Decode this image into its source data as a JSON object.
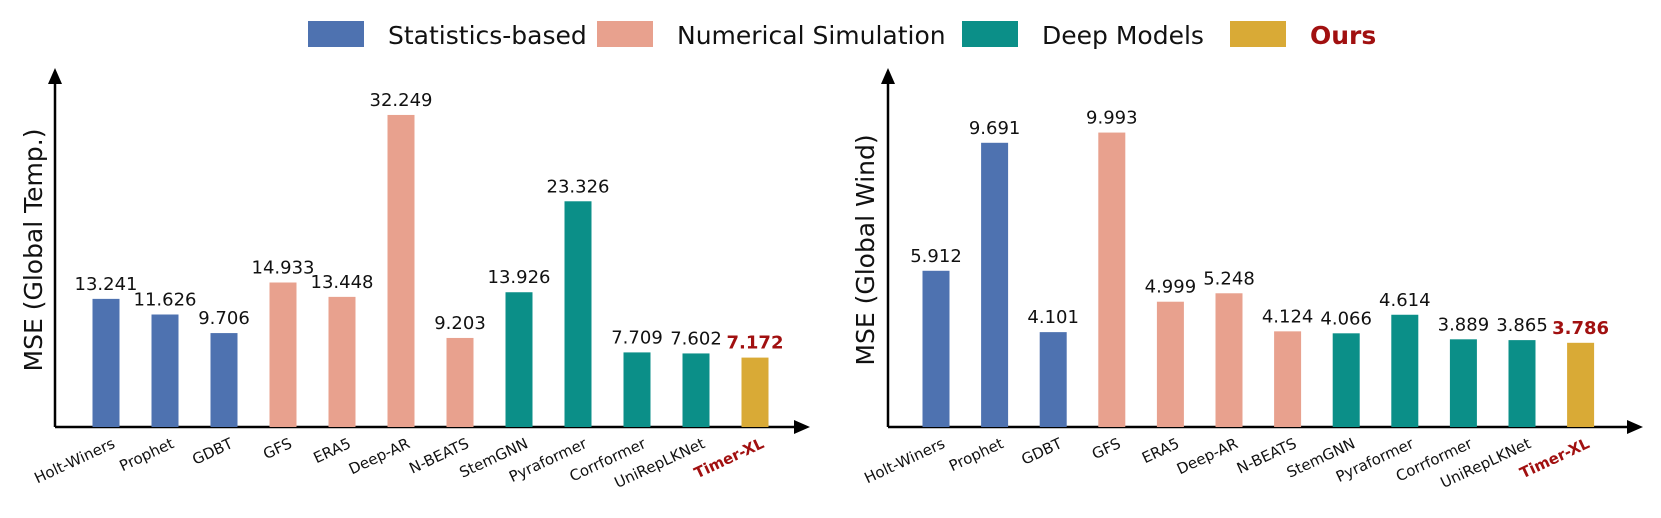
{
  "legend": [
    {
      "label": "Statistics-based",
      "color": "#4e72b0",
      "highlight": false
    },
    {
      "label": "Numerical Simulation",
      "color": "#e8a18e",
      "highlight": false
    },
    {
      "label": "Deep Models",
      "color": "#0b8f88",
      "highlight": false
    },
    {
      "label": "Ours",
      "color": "#d9aa36",
      "highlight": true
    }
  ],
  "colors": {
    "Statistics-based": "#4e72b0",
    "Numerical Simulation": "#e8a18e",
    "Deep Models": "#0b8f88",
    "Ours": "#d9aa36",
    "highlight_text": "#a11010",
    "text": "#111111",
    "axis": "#000000"
  },
  "chart_data": [
    {
      "type": "bar",
      "ylabel": "MSE (Global Temp.)",
      "categories": [
        "Holt-Winers",
        "Prophet",
        "GDBT",
        "GFS",
        "ERA5",
        "Deep-AR",
        "N-BEATS",
        "StemGNN",
        "Pyraformer",
        "Corrformer",
        "UniRepLKNet",
        "Timer-XL"
      ],
      "groups": [
        "Statistics-based",
        "Statistics-based",
        "Statistics-based",
        "Numerical Simulation",
        "Numerical Simulation",
        "Numerical Simulation",
        "Numerical Simulation",
        "Deep Models",
        "Deep Models",
        "Deep Models",
        "Deep Models",
        "Ours"
      ],
      "values": [
        13.241,
        11.626,
        9.706,
        14.933,
        13.448,
        32.249,
        9.203,
        13.926,
        23.326,
        7.709,
        7.602,
        7.172
      ],
      "value_labels": [
        "13.241",
        "11.626",
        "9.706",
        "14.933",
        "13.448",
        "32.249",
        "9.203",
        "13.926",
        "23.326",
        "7.709",
        "7.602",
        "7.172"
      ],
      "highlight_index": 11,
      "ylim": [
        0,
        34
      ]
    },
    {
      "type": "bar",
      "ylabel": "MSE (Global Wind)",
      "categories": [
        "Holt-Winers",
        "Prophet",
        "GDBT",
        "GFS",
        "ERA5",
        "Deep-AR",
        "N-BEATS",
        "StemGNN",
        "Pyraformer",
        "Corrformer",
        "UniRepLKNet",
        "Timer-XL"
      ],
      "groups": [
        "Statistics-based",
        "Statistics-based",
        "Statistics-based",
        "Numerical Simulation",
        "Numerical Simulation",
        "Numerical Simulation",
        "Numerical Simulation",
        "Deep Models",
        "Deep Models",
        "Deep Models",
        "Deep Models",
        "Ours"
      ],
      "values": [
        5.912,
        9.691,
        4.101,
        9.993,
        4.999,
        5.248,
        4.124,
        4.066,
        4.614,
        3.889,
        3.865,
        3.786
      ],
      "value_labels": [
        "5.912",
        "9.691",
        "4.101",
        "9.993",
        "4.999",
        "5.248",
        "4.124",
        "4.066",
        "4.614",
        "3.889",
        "3.865",
        "3.786"
      ],
      "highlight_index": 11,
      "ylim": [
        0,
        10.6
      ],
      "ybase": 1.3
    }
  ]
}
